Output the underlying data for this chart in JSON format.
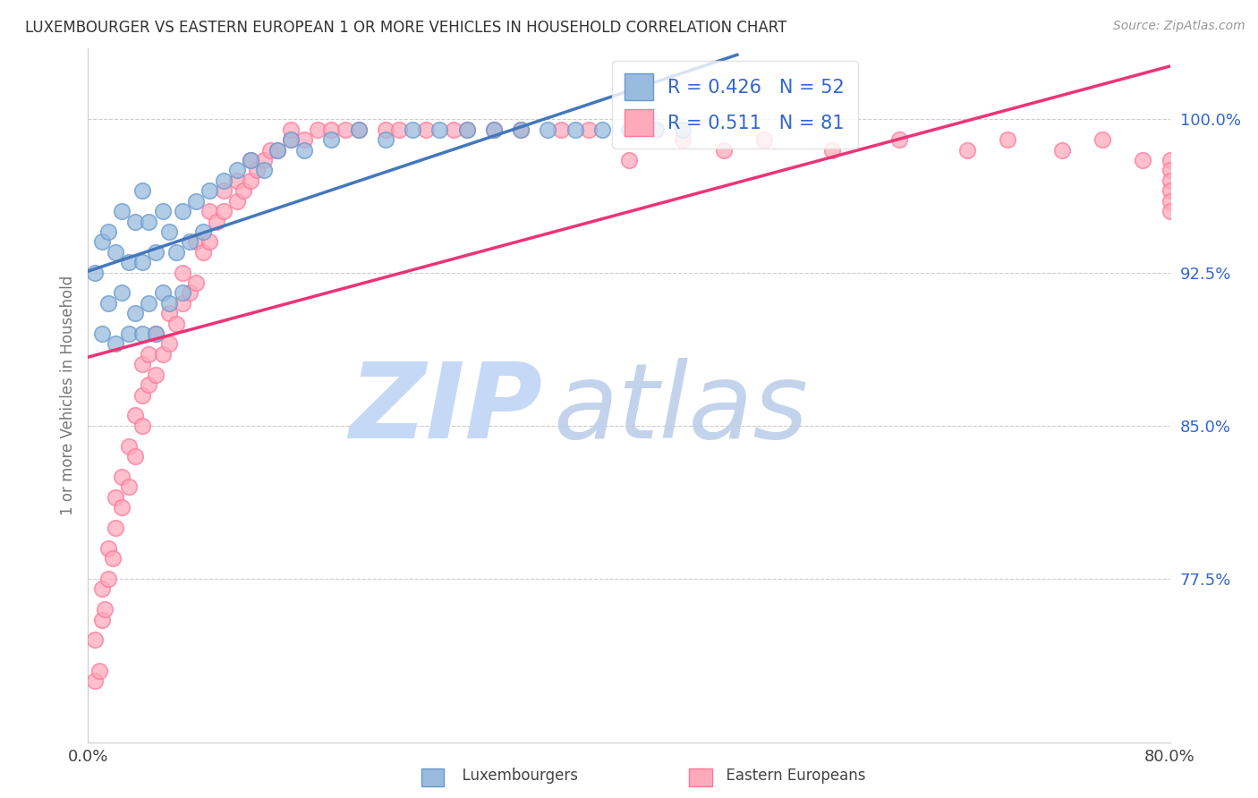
{
  "title": "LUXEMBOURGER VS EASTERN EUROPEAN 1 OR MORE VEHICLES IN HOUSEHOLD CORRELATION CHART",
  "source": "Source: ZipAtlas.com",
  "ylabel": "1 or more Vehicles in Household",
  "yticks": [
    "100.0%",
    "92.5%",
    "85.0%",
    "77.5%"
  ],
  "ytick_vals": [
    1.0,
    0.925,
    0.85,
    0.775
  ],
  "xlim": [
    0.0,
    0.8
  ],
  "ylim": [
    0.695,
    1.035
  ],
  "xtick_left": "0.0%",
  "xtick_right": "80.0%",
  "legend_blue_r": "R = 0.426",
  "legend_blue_n": "N = 52",
  "legend_pink_r": "R = 0.511",
  "legend_pink_n": "N = 81",
  "blue_color": "#99BBDD",
  "blue_edge_color": "#6699CC",
  "pink_color": "#FFAABB",
  "pink_edge_color": "#FF7799",
  "blue_line_color": "#4477BB",
  "pink_line_color": "#EE3377",
  "watermark_zip_color": "#C8D8F0",
  "watermark_atlas_color": "#C8D8F0",
  "legend_text_color": "#3366CC",
  "source_color": "#999999",
  "title_color": "#333333",
  "ylabel_color": "#777777",
  "grid_color": "#CCCCCC",
  "blue_x": [
    0.005,
    0.01,
    0.01,
    0.015,
    0.015,
    0.02,
    0.02,
    0.025,
    0.025,
    0.03,
    0.03,
    0.035,
    0.035,
    0.04,
    0.04,
    0.04,
    0.045,
    0.045,
    0.05,
    0.05,
    0.055,
    0.055,
    0.06,
    0.06,
    0.065,
    0.07,
    0.07,
    0.075,
    0.08,
    0.085,
    0.09,
    0.1,
    0.11,
    0.12,
    0.13,
    0.14,
    0.15,
    0.16,
    0.18,
    0.2,
    0.22,
    0.24,
    0.26,
    0.28,
    0.3,
    0.32,
    0.34,
    0.36,
    0.38,
    0.4,
    0.42,
    0.44
  ],
  "blue_y": [
    0.925,
    0.895,
    0.94,
    0.91,
    0.945,
    0.89,
    0.935,
    0.915,
    0.955,
    0.895,
    0.93,
    0.905,
    0.95,
    0.895,
    0.93,
    0.965,
    0.91,
    0.95,
    0.895,
    0.935,
    0.915,
    0.955,
    0.91,
    0.945,
    0.935,
    0.915,
    0.955,
    0.94,
    0.96,
    0.945,
    0.965,
    0.97,
    0.975,
    0.98,
    0.975,
    0.985,
    0.99,
    0.985,
    0.99,
    0.995,
    0.99,
    0.995,
    0.995,
    0.995,
    0.995,
    0.995,
    0.995,
    0.995,
    0.995,
    0.995,
    0.995,
    0.995
  ],
  "pink_x": [
    0.005,
    0.005,
    0.008,
    0.01,
    0.01,
    0.012,
    0.015,
    0.015,
    0.018,
    0.02,
    0.02,
    0.025,
    0.025,
    0.03,
    0.03,
    0.035,
    0.035,
    0.04,
    0.04,
    0.04,
    0.045,
    0.045,
    0.05,
    0.05,
    0.055,
    0.06,
    0.06,
    0.065,
    0.07,
    0.07,
    0.075,
    0.08,
    0.08,
    0.085,
    0.09,
    0.09,
    0.095,
    0.1,
    0.1,
    0.11,
    0.11,
    0.115,
    0.12,
    0.12,
    0.125,
    0.13,
    0.135,
    0.14,
    0.15,
    0.15,
    0.16,
    0.17,
    0.18,
    0.19,
    0.2,
    0.22,
    0.23,
    0.25,
    0.27,
    0.28,
    0.3,
    0.32,
    0.35,
    0.37,
    0.4,
    0.44,
    0.47,
    0.5,
    0.55,
    0.6,
    0.65,
    0.68,
    0.72,
    0.75,
    0.78,
    0.8,
    0.8,
    0.8,
    0.8,
    0.8,
    0.8
  ],
  "pink_y": [
    0.725,
    0.745,
    0.73,
    0.755,
    0.77,
    0.76,
    0.775,
    0.79,
    0.785,
    0.8,
    0.815,
    0.81,
    0.825,
    0.82,
    0.84,
    0.835,
    0.855,
    0.85,
    0.865,
    0.88,
    0.87,
    0.885,
    0.875,
    0.895,
    0.885,
    0.89,
    0.905,
    0.9,
    0.91,
    0.925,
    0.915,
    0.92,
    0.94,
    0.935,
    0.94,
    0.955,
    0.95,
    0.955,
    0.965,
    0.96,
    0.97,
    0.965,
    0.97,
    0.98,
    0.975,
    0.98,
    0.985,
    0.985,
    0.99,
    0.995,
    0.99,
    0.995,
    0.995,
    0.995,
    0.995,
    0.995,
    0.995,
    0.995,
    0.995,
    0.995,
    0.995,
    0.995,
    0.995,
    0.995,
    0.98,
    0.99,
    0.985,
    0.99,
    0.985,
    0.99,
    0.985,
    0.99,
    0.985,
    0.99,
    0.98,
    0.98,
    0.975,
    0.97,
    0.965,
    0.96,
    0.955
  ]
}
